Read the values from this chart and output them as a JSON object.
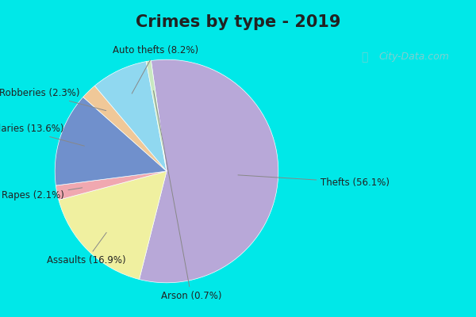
{
  "title": "Crimes by type - 2019",
  "labels": [
    "Thefts",
    "Assaults",
    "Rapes",
    "Burglaries",
    "Robberies",
    "Auto thefts",
    "Arson"
  ],
  "values": [
    56.1,
    16.9,
    2.1,
    13.6,
    2.3,
    8.2,
    0.7
  ],
  "colors": [
    "#b8a8d8",
    "#f0f0a0",
    "#f0a8b0",
    "#7090cc",
    "#f0c898",
    "#90d8f0",
    "#c8e8c0"
  ],
  "title_fontsize": 15,
  "label_fontsize": 8.5,
  "cyan_color": "#00e8e8",
  "bg_color": "#d8eedc",
  "watermark": "City-Data.com",
  "startangle": 98
}
